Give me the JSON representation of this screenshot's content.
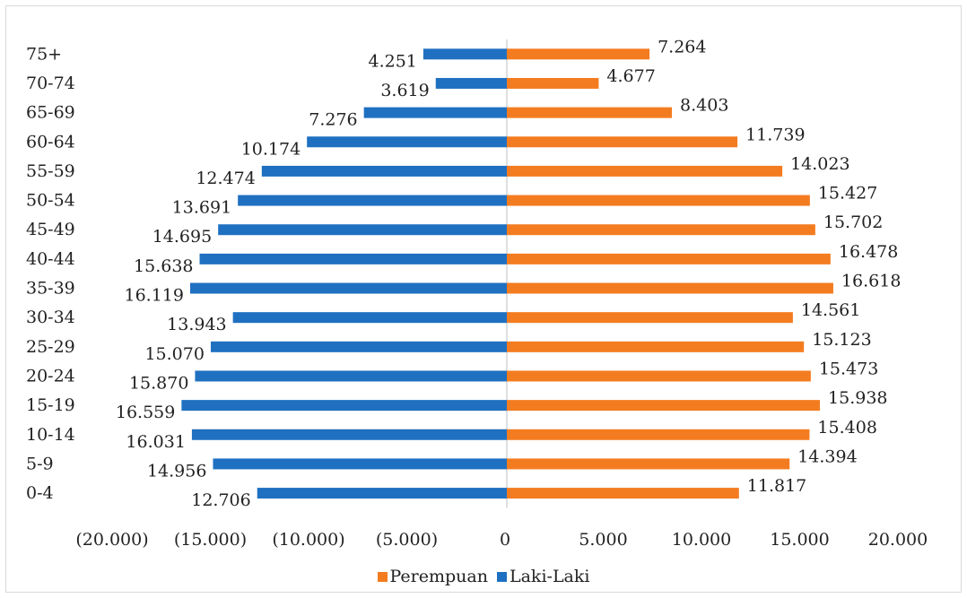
{
  "chart_data": {
    "type": "bar",
    "orientation": "horizontal",
    "categories": [
      "0-4",
      "5-9",
      "10-14",
      "15-19",
      "20-24",
      "25-29",
      "30-34",
      "35-39",
      "40-44",
      "45-49",
      "50-54",
      "55-59",
      "60-64",
      "65-69",
      "70-74",
      "75+"
    ],
    "series": [
      {
        "name": "Laki-Laki",
        "color": "#1f70c1",
        "values": [
          -12706,
          -14956,
          -16031,
          -16559,
          -15870,
          -15070,
          -13943,
          -16119,
          -15638,
          -14695,
          -13691,
          -12474,
          -10174,
          -7276,
          -3619,
          -4251
        ],
        "labels": [
          "12.706",
          "14.956",
          "16.031",
          "16.559",
          "15.870",
          "15.070",
          "13.943",
          "16.119",
          "15.638",
          "14.695",
          "13.691",
          "12.474",
          "10.174",
          "7.276",
          "3.619",
          "4.251"
        ]
      },
      {
        "name": "Perempuan",
        "color": "#f47c20",
        "values": [
          11817,
          14394,
          15408,
          15938,
          15473,
          15123,
          14561,
          16618,
          16478,
          15702,
          15427,
          14023,
          11739,
          8403,
          4677,
          7264
        ],
        "labels": [
          "11.817",
          "14.394",
          "15.408",
          "15.938",
          "15.473",
          "15.123",
          "14.561",
          "16.618",
          "16.478",
          "15.702",
          "15.427",
          "14.023",
          "11.739",
          "8.403",
          "4.677",
          "7.264"
        ]
      }
    ],
    "xlim": [
      -20000,
      20000
    ],
    "x_ticks": [
      -20000,
      -15000,
      -10000,
      -5000,
      0,
      5000,
      10000,
      15000,
      20000
    ],
    "x_tick_labels": [
      "(20.000)",
      "(15.000)",
      "(10.000)",
      "(5.000)",
      "0",
      "5.000",
      "10.000",
      "15.000",
      "20.000"
    ],
    "grid": false,
    "legend": {
      "position": "bottom",
      "entries": [
        "Perempuan",
        "Laki-Laki"
      ]
    }
  }
}
